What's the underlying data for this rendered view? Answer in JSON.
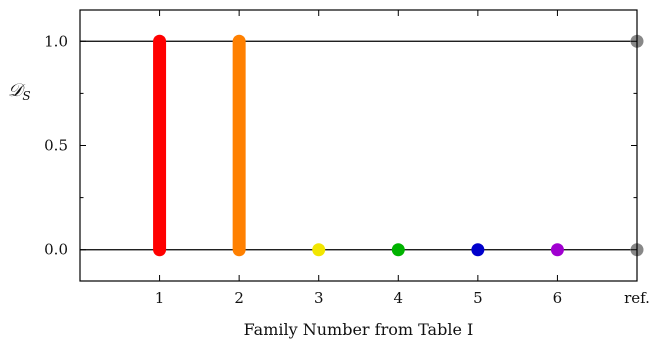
{
  "chart_data": {
    "type": "scatter",
    "xlabel": "Family Number from Table I",
    "ylabel": "𝒟",
    "ylabel_subscript": "S",
    "xlim": [
      0,
      7
    ],
    "ylim": [
      -0.15,
      1.15
    ],
    "xticks": [
      {
        "value": 1,
        "label": "1"
      },
      {
        "value": 2,
        "label": "2"
      },
      {
        "value": 3,
        "label": "3"
      },
      {
        "value": 4,
        "label": "4"
      },
      {
        "value": 5,
        "label": "5"
      },
      {
        "value": 6,
        "label": "6"
      },
      {
        "value": 7,
        "label": "ref."
      }
    ],
    "yticks": [
      {
        "value": 0.0,
        "label": "0.0"
      },
      {
        "value": 0.5,
        "label": "0.5"
      },
      {
        "value": 1.0,
        "label": "1.0"
      }
    ],
    "yminor": [
      0.25,
      0.75
    ],
    "hlines": [
      0.0,
      1.0
    ],
    "grid": false,
    "series": [
      {
        "family": "1",
        "color": "#ff0000",
        "x": 1,
        "ymin": 0.0,
        "ymax": 1.0
      },
      {
        "family": "2",
        "color": "#ff8000",
        "x": 2,
        "ymin": 0.0,
        "ymax": 1.0
      },
      {
        "family": "3",
        "color": "#f2e600",
        "x": 3,
        "ymin": 0.0,
        "ymax": 0.0
      },
      {
        "family": "4",
        "color": "#00b300",
        "x": 4,
        "ymin": 0.0,
        "ymax": 0.0
      },
      {
        "family": "5",
        "color": "#0000cc",
        "x": 5,
        "ymin": 0.0,
        "ymax": 0.0
      },
      {
        "family": "6",
        "color": "#a000d0",
        "x": 6,
        "ymin": 0.0,
        "ymax": 0.0
      },
      {
        "family": "ref.",
        "color": "#888888",
        "x": 7,
        "points": [
          0.0,
          1.0
        ]
      }
    ]
  }
}
